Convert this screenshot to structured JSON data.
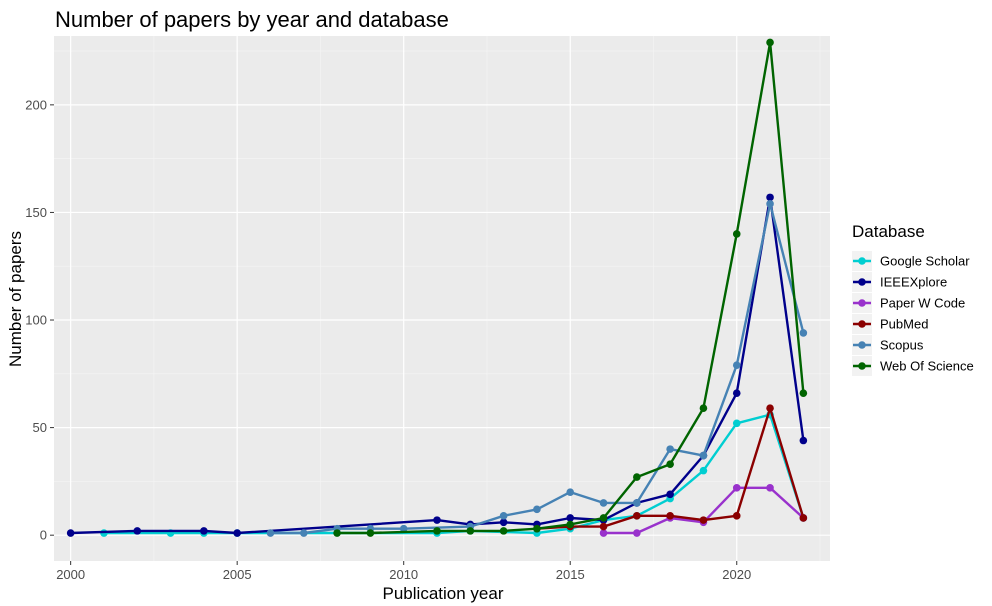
{
  "chart_data": {
    "type": "line",
    "title": "Number of papers by year and database",
    "xlabel": "Publication year",
    "ylabel": "Number of papers",
    "xlim": [
      1999.5,
      2022.8
    ],
    "ylim": [
      -12,
      232
    ],
    "xticks": [
      2000,
      2005,
      2010,
      2015,
      2020
    ],
    "yticks": [
      0,
      50,
      100,
      150,
      200
    ],
    "grid": true,
    "legend_title": "Database",
    "legend_position": "right",
    "series": [
      {
        "name": "Google Scholar",
        "color": "#00CED1",
        "points": [
          [
            2001,
            1
          ],
          [
            2003,
            1
          ],
          [
            2004,
            1
          ],
          [
            2005,
            1
          ],
          [
            2011,
            1
          ],
          [
            2012,
            2
          ],
          [
            2014,
            1
          ],
          [
            2015,
            3
          ],
          [
            2016,
            7
          ],
          [
            2017,
            9
          ],
          [
            2018,
            17
          ],
          [
            2019,
            30
          ],
          [
            2020,
            52
          ],
          [
            2021,
            56
          ],
          [
            2022,
            8
          ]
        ]
      },
      {
        "name": "IEEEXplore",
        "color": "#00008B",
        "points": [
          [
            2000,
            1
          ],
          [
            2002,
            2
          ],
          [
            2004,
            2
          ],
          [
            2005,
            1
          ],
          [
            2011,
            7
          ],
          [
            2012,
            5
          ],
          [
            2013,
            6
          ],
          [
            2014,
            5
          ],
          [
            2015,
            8
          ],
          [
            2016,
            7
          ],
          [
            2017,
            15
          ],
          [
            2018,
            19
          ],
          [
            2019,
            37
          ],
          [
            2020,
            66
          ],
          [
            2021,
            157
          ],
          [
            2022,
            44
          ]
        ]
      },
      {
        "name": "Paper W Code",
        "color": "#9932CC",
        "points": [
          [
            2016,
            1
          ],
          [
            2017,
            1
          ],
          [
            2018,
            8
          ],
          [
            2019,
            6
          ],
          [
            2020,
            22
          ],
          [
            2021,
            22
          ],
          [
            2022,
            8
          ]
        ]
      },
      {
        "name": "PubMed",
        "color": "#8B0000",
        "points": [
          [
            2014,
            3
          ],
          [
            2015,
            4
          ],
          [
            2016,
            4
          ],
          [
            2017,
            9
          ],
          [
            2018,
            9
          ],
          [
            2019,
            7
          ],
          [
            2020,
            9
          ],
          [
            2021,
            59
          ],
          [
            2022,
            8
          ]
        ]
      },
      {
        "name": "Scopus",
        "color": "#4682B4",
        "points": [
          [
            2006,
            1
          ],
          [
            2007,
            1
          ],
          [
            2008,
            3
          ],
          [
            2009,
            3
          ],
          [
            2010,
            3
          ],
          [
            2012,
            4
          ],
          [
            2013,
            9
          ],
          [
            2014,
            12
          ],
          [
            2015,
            20
          ],
          [
            2016,
            15
          ],
          [
            2017,
            15
          ],
          [
            2018,
            40
          ],
          [
            2019,
            37
          ],
          [
            2020,
            79
          ],
          [
            2021,
            154
          ],
          [
            2022,
            94
          ]
        ]
      },
      {
        "name": "Web Of Science",
        "color": "#006400",
        "points": [
          [
            2008,
            1
          ],
          [
            2009,
            1
          ],
          [
            2011,
            2
          ],
          [
            2012,
            2
          ],
          [
            2013,
            2
          ],
          [
            2014,
            3
          ],
          [
            2015,
            5
          ],
          [
            2016,
            8
          ],
          [
            2017,
            27
          ],
          [
            2018,
            33
          ],
          [
            2019,
            59
          ],
          [
            2020,
            140
          ],
          [
            2021,
            229
          ],
          [
            2022,
            66
          ]
        ]
      }
    ]
  }
}
